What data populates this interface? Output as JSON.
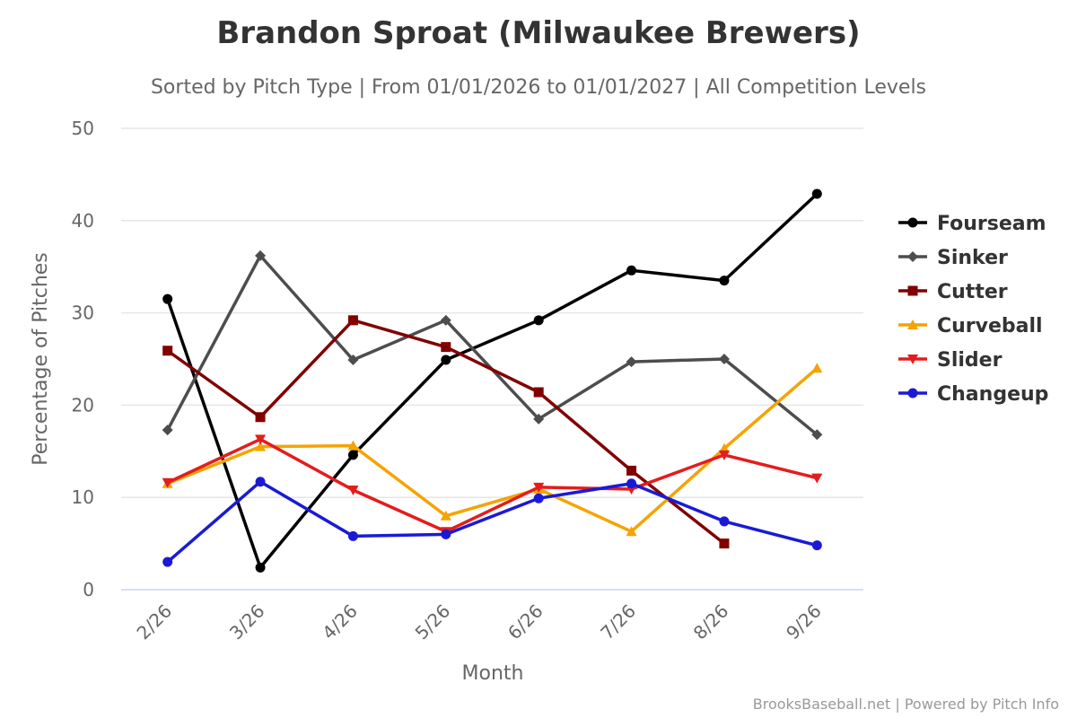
{
  "chart_data": {
    "type": "line",
    "title": "Brandon Sproat (Milwaukee Brewers)",
    "subtitle": "Sorted by Pitch Type | From 01/01/2026 to 01/01/2027 | All Competition Levels",
    "xlabel": "Month",
    "ylabel": "Percentage of Pitches",
    "categories": [
      "2/26",
      "3/26",
      "4/26",
      "5/26",
      "6/26",
      "7/26",
      "8/26",
      "9/26"
    ],
    "ylim": [
      0,
      50
    ],
    "yticks": [
      0,
      10,
      20,
      30,
      40,
      50
    ],
    "grid": true,
    "legend_position": "right",
    "series": [
      {
        "name": "Fourseam",
        "color": "#000000",
        "marker": "circle",
        "values": [
          31.5,
          2.4,
          14.6,
          24.9,
          29.2,
          34.6,
          33.5,
          42.9
        ]
      },
      {
        "name": "Sinker",
        "color": "#4d4d4d",
        "marker": "diamond",
        "values": [
          17.3,
          36.2,
          24.9,
          29.2,
          18.5,
          24.7,
          25.0,
          16.8
        ]
      },
      {
        "name": "Cutter",
        "color": "#800000",
        "marker": "square",
        "values": [
          25.9,
          18.7,
          29.2,
          26.3,
          21.4,
          12.9,
          5.0,
          null
        ]
      },
      {
        "name": "Curveball",
        "color": "#f5a300",
        "marker": "triangle",
        "values": [
          11.5,
          15.5,
          15.6,
          8.0,
          10.9,
          6.3,
          15.3,
          24.0
        ]
      },
      {
        "name": "Slider",
        "color": "#e51c1c",
        "marker": "triangle-down",
        "values": [
          11.6,
          16.3,
          10.8,
          6.3,
          11.1,
          10.9,
          14.6,
          12.1
        ]
      },
      {
        "name": "Changeup",
        "color": "#1a1ad6",
        "marker": "circle",
        "values": [
          3.0,
          11.7,
          5.8,
          6.0,
          9.9,
          11.5,
          7.4,
          4.8
        ]
      }
    ]
  },
  "credits": "BrooksBaseball.net | Powered by Pitch Info"
}
